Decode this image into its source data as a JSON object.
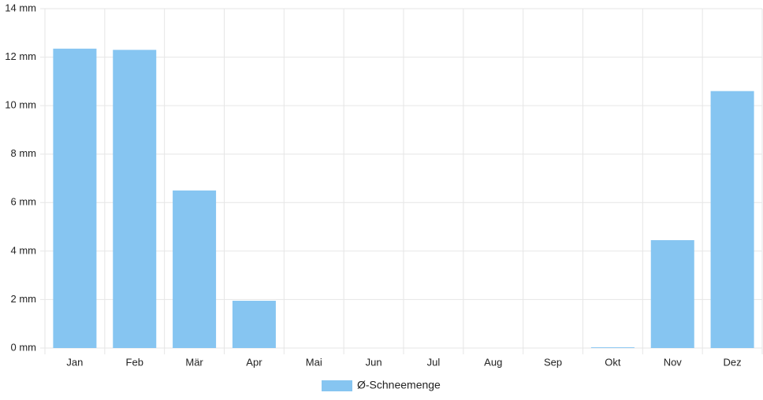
{
  "chart_data": {
    "type": "bar",
    "categories": [
      "Jan",
      "Feb",
      "Mär",
      "Apr",
      "Mai",
      "Jun",
      "Jul",
      "Aug",
      "Sep",
      "Okt",
      "Nov",
      "Dez"
    ],
    "series": [
      {
        "name": "Ø-Schneemenge",
        "color": "#86c5f1",
        "values": [
          12.35,
          12.3,
          6.5,
          1.95,
          0,
          0,
          0,
          0,
          0,
          0.03,
          4.45,
          10.6
        ]
      }
    ],
    "ylim": [
      0,
      14
    ],
    "yticks": [
      {
        "value": 0,
        "label": "0 mm"
      },
      {
        "value": 2,
        "label": "2 mm"
      },
      {
        "value": 4,
        "label": "4 mm"
      },
      {
        "value": 6,
        "label": "6 mm"
      },
      {
        "value": 8,
        "label": "8 mm"
      },
      {
        "value": 10,
        "label": "10 mm"
      },
      {
        "value": 12,
        "label": "12 mm"
      },
      {
        "value": 14,
        "label": "14 mm"
      }
    ],
    "grid": true,
    "legend": "bottom"
  }
}
